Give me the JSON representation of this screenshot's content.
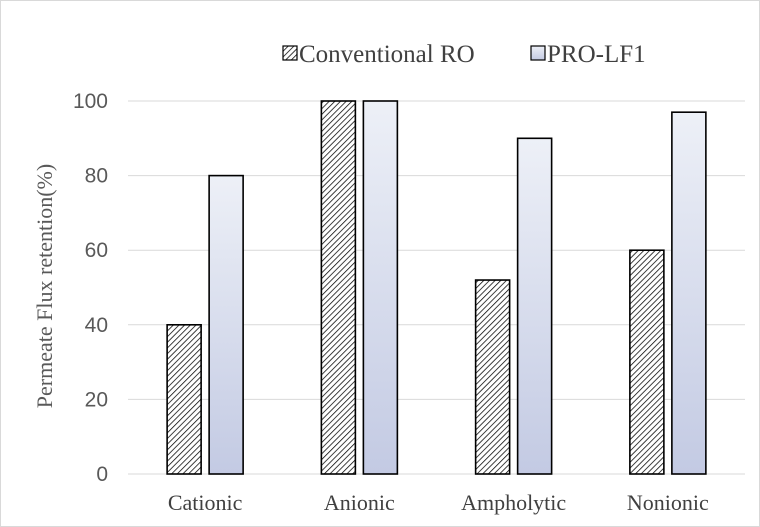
{
  "chart_data": {
    "type": "bar",
    "title": "",
    "xlabel": "",
    "ylabel": "Permeate Flux retention(%)",
    "ylim": [
      0,
      100
    ],
    "yticks": [
      0,
      20,
      40,
      60,
      80,
      100
    ],
    "categories": [
      "Cationic",
      "Anionic",
      "Ampholytic",
      "Nonionic"
    ],
    "series": [
      {
        "name": "Conventional RO",
        "values": [
          40,
          100,
          52,
          60
        ],
        "fill": "hatched"
      },
      {
        "name": "PRO-LF1",
        "values": [
          80,
          100,
          90,
          97
        ],
        "fill": "gradient"
      }
    ],
    "legend_position": "top-right",
    "grid": true,
    "colors": {
      "hatch": "#000000",
      "hatch_background": "#ffffff",
      "bar_top": "#edf0f7",
      "bar_bottom": "#c3cae3",
      "bar_edge": "#000000",
      "gridline": "#d9d9d9"
    }
  }
}
